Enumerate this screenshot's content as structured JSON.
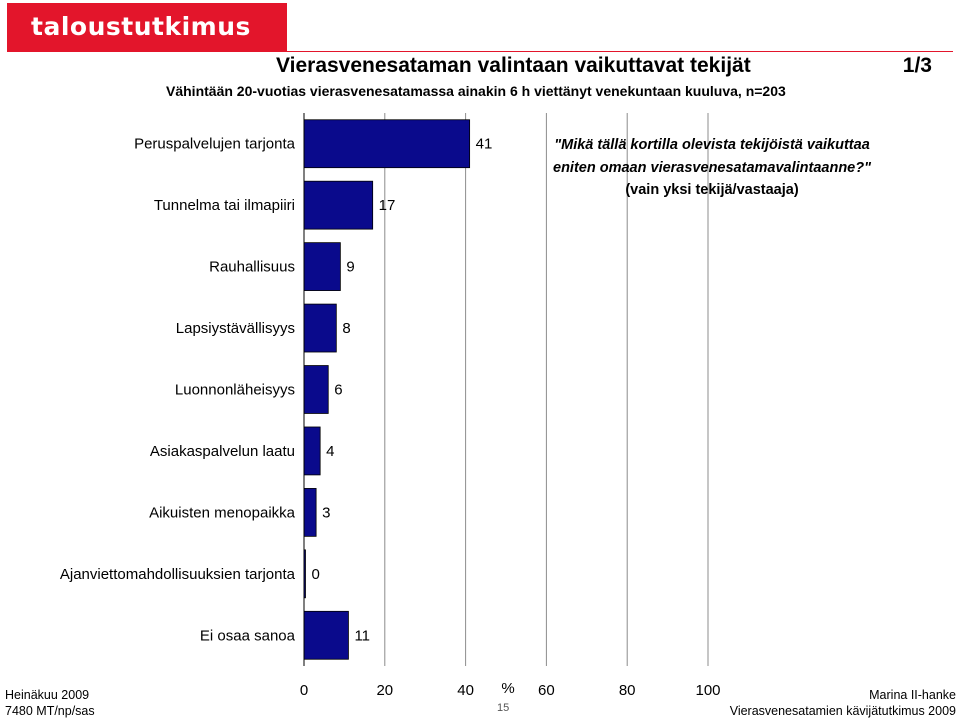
{
  "brand": {
    "logo_text": "taloustutkimus oy",
    "logo_color": "#e3152b"
  },
  "header": {
    "title": "Vierasvenesataman valintaan vaikuttavat tekijät",
    "page": "1/3",
    "subtitle": "Vähintään 20-vuotias vierasvenesatamassa ainakin 6 h viettänyt venekuntaan kuuluva, n=203"
  },
  "note": {
    "question": "\"Mikä tällä kortilla olevista tekijöistä vaikuttaa eniten omaan vierasvenesatamavalintaanne?\"",
    "instruction": "(vain yksi tekijä/vastaaja)"
  },
  "chart_data": {
    "type": "bar",
    "orientation": "horizontal",
    "categories": [
      "Peruspalvelujen tarjonta",
      "Tunnelma tai ilmapiiri",
      "Rauhallisuus",
      "Lapsiystävällisyys",
      "Luonnonläheisyys",
      "Asiakaspalvelun laatu",
      "Aikuisten menopaikka",
      "Ajanviettomahdollisuuksien tarjonta",
      "Ei osaa sanoa"
    ],
    "values": [
      41,
      17,
      9,
      8,
      6,
      4,
      3,
      0,
      11
    ],
    "value_labels": [
      "41",
      "17",
      "9",
      "8",
      "6",
      "4",
      "3",
      "0",
      "11"
    ],
    "xlim": [
      0,
      100
    ],
    "xticks": [
      "0",
      "20",
      "40",
      "60",
      "80",
      "100"
    ],
    "xlabel": "%",
    "bar_color": "#0a0a8c",
    "grid": true
  },
  "footer": {
    "date": "Heinäkuu 2009",
    "code": "7480 MT/np/sas",
    "page_number": "15",
    "project": "Marina II-hanke",
    "study": "Vierasvenesatamien kävijätutkimus 2009"
  }
}
